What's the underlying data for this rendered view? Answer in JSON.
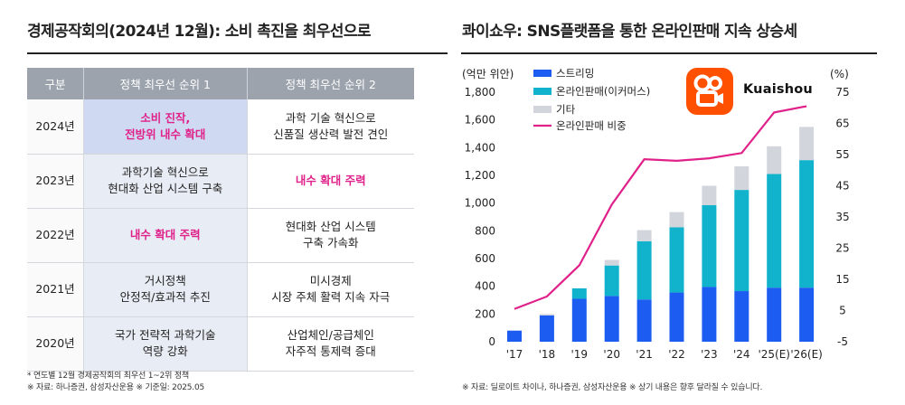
{
  "left_title": "경제공작회의(2024년 12월): 소비 촉진을 최우선으로",
  "right_title": "콰이쇼우: SNS플랫폼을 통한 온라인판매 지속 상승세",
  "table": {
    "headers": [
      "구분",
      "정책 최우선 순위 1",
      "정책 최우선 순위 2"
    ],
    "rows": [
      {
        "year": "2024년",
        "p1": [
          "소비 진작,",
          "전방위 내수 확대"
        ],
        "p2": [
          "과학 기술 혁신으로",
          "신품질 생산력 발전 견인"
        ]
      },
      {
        "year": "2023년",
        "p1": [
          "과학기술 혁신으로",
          "현대화 산업 시스템 구축"
        ],
        "p2": [
          "내수 확대 주력"
        ]
      },
      {
        "year": "2022년",
        "p1": [
          "내수 확대 주력"
        ],
        "p2": [
          "현대화 산업 시스템",
          "구축 가속화"
        ]
      },
      {
        "year": "2021년",
        "p1": [
          "거시정책",
          "안정적/효과적 추진"
        ],
        "p2": [
          "미시경제",
          "시장 주체 활력 지속 자극"
        ]
      },
      {
        "year": "2020년",
        "p1": [
          "국가 전략적 과학기술",
          "역량 강화"
        ],
        "p2": [
          "산업체인/공급체인",
          "자주적 통제력 증대"
        ]
      }
    ]
  },
  "left_notes": [
    "* 연도별 12월 경제공작회의 최우선 1~2위 정책",
    "※ 자료: 하나증권, 삼성자산운용 ※ 기준일: 2025.05"
  ],
  "right_note": "※ 자료: 딜로이트 차이나, 하나증권, 삼성자산운용 ※ 상기 내용은 향후 달라질 수 있습니다.",
  "logo_text": "Kuaishou",
  "colors": {
    "streaming": "#1d5cf0",
    "online": "#11b3cc",
    "other": "#d2d5db",
    "share": "#e0218a",
    "pink_text": "#e0218a"
  },
  "chart_data": {
    "type": "bar",
    "stacked": true,
    "left_axis_label": "(억만 위안)",
    "right_axis_label": "(%)",
    "categories": [
      "'17",
      "'18",
      "'19",
      "'20",
      "'21",
      "'22",
      "'23",
      "'24",
      "'25(E)",
      "'26(E)"
    ],
    "series": [
      {
        "name": "스트리밍",
        "values": [
          80,
          190,
          310,
          330,
          305,
          355,
          395,
          365,
          390,
          390
        ]
      },
      {
        "name": "온라인판매(이커머스)",
        "values": [
          0,
          0,
          75,
          220,
          420,
          470,
          590,
          730,
          820,
          920
        ]
      },
      {
        "name": "기타",
        "values": [
          0,
          10,
          0,
          40,
          80,
          110,
          140,
          170,
          200,
          240
        ]
      }
    ],
    "line": {
      "name": "온라인판매 비중",
      "axis": "right",
      "values": [
        5.5,
        9.5,
        19.5,
        39,
        53.5,
        53,
        53.8,
        55.5,
        68.5,
        70.5
      ]
    },
    "ylim": [
      0,
      1800
    ],
    "yticks": [
      "0",
      "200",
      "400",
      "600",
      "800",
      "1,000",
      "1,200",
      "1,400",
      "1,600",
      "1,800"
    ],
    "y2lim": [
      -5,
      75
    ],
    "y2ticks": [
      "-5",
      "5",
      "15",
      "25",
      "35",
      "45",
      "55",
      "65",
      "75"
    ],
    "legend_position": "top-left",
    "grid": false
  }
}
